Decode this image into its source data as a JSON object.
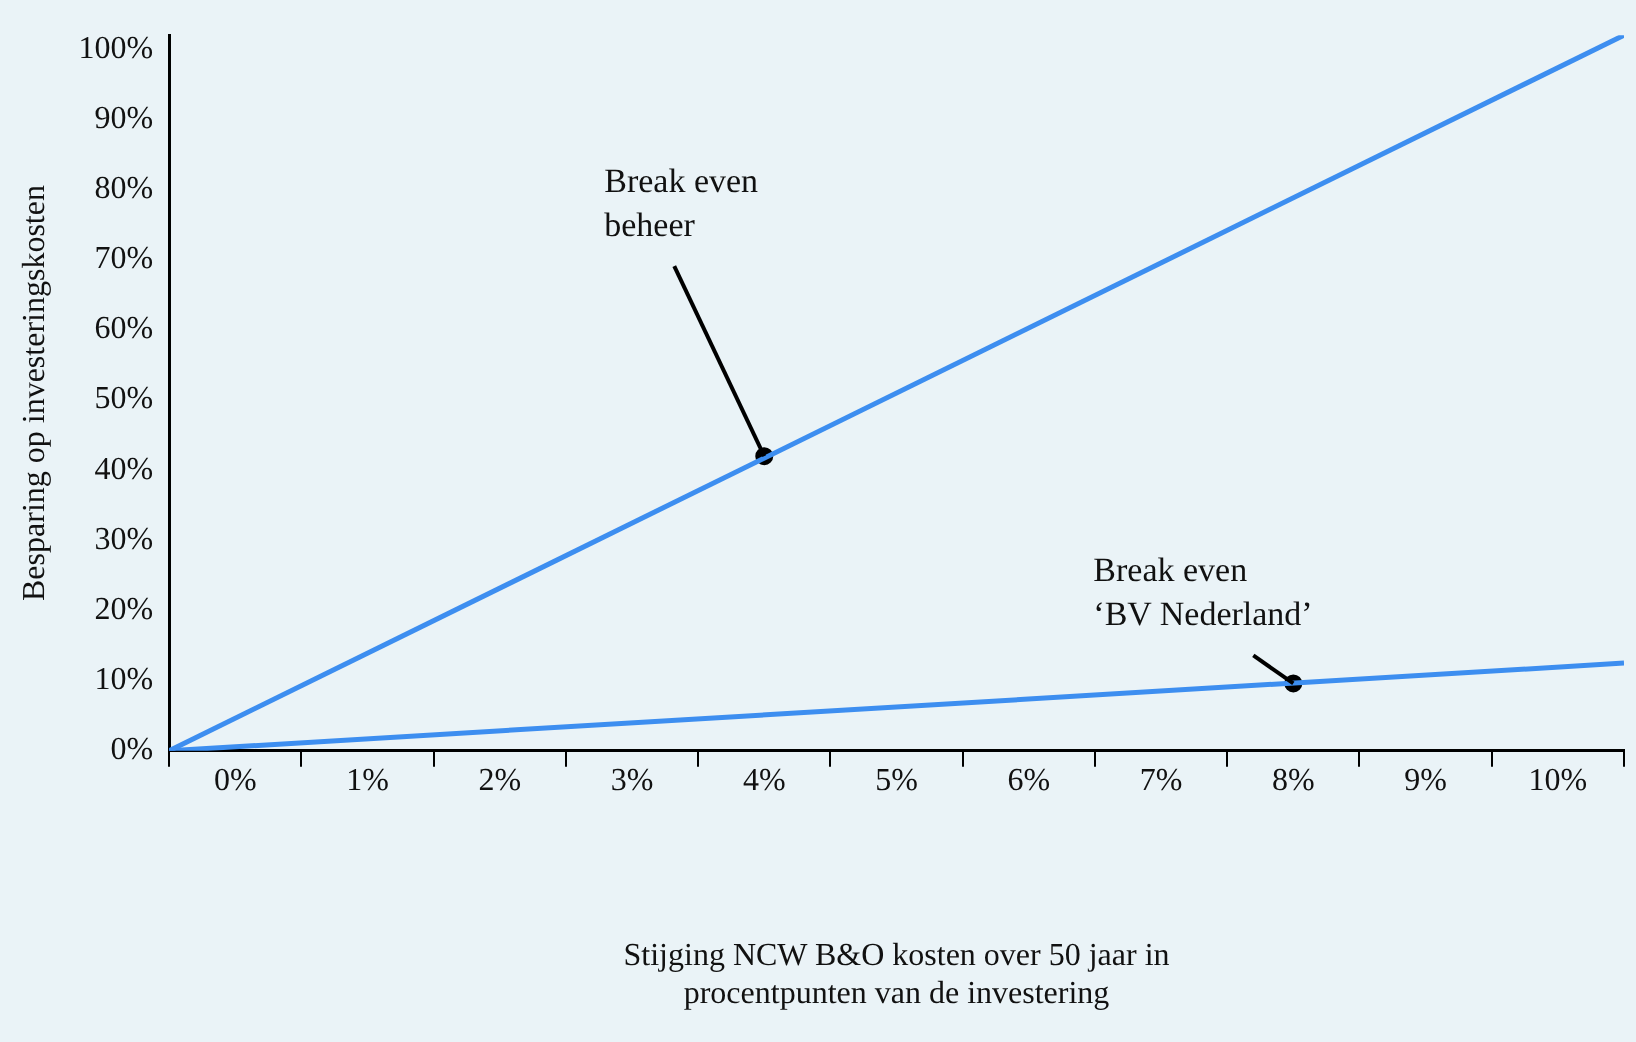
{
  "chart_data": {
    "type": "line",
    "xlabel": "Stijging NCW B&O kosten over 50 jaar in\nprocentpunten van de investering",
    "ylabel": "Besparing op investeringskosten",
    "xlim": [
      -0.5,
      10.5
    ],
    "xticks": [
      {
        "value": -0.5,
        "label": null
      },
      {
        "value": 0,
        "label": "0%"
      },
      {
        "value": 0.5,
        "label": null
      },
      {
        "value": 1,
        "label": "1%"
      },
      {
        "value": 1.5,
        "label": null
      },
      {
        "value": 2,
        "label": "2%"
      },
      {
        "value": 2.5,
        "label": null
      },
      {
        "value": 3,
        "label": "3%"
      },
      {
        "value": 3.5,
        "label": null
      },
      {
        "value": 4,
        "label": "4%"
      },
      {
        "value": 4.5,
        "label": null
      },
      {
        "value": 5,
        "label": "5%"
      },
      {
        "value": 5.5,
        "label": null
      },
      {
        "value": 6,
        "label": "6%"
      },
      {
        "value": 6.5,
        "label": null
      },
      {
        "value": 7,
        "label": "7%"
      },
      {
        "value": 7.5,
        "label": null
      },
      {
        "value": 8,
        "label": "8%"
      },
      {
        "value": 8.5,
        "label": null
      },
      {
        "value": 9,
        "label": "9%"
      },
      {
        "value": 9.5,
        "label": null
      },
      {
        "value": 10,
        "label": "10%"
      },
      {
        "value": 10.5,
        "label": null
      }
    ],
    "ylim": [
      0,
      102
    ],
    "yticks": [
      {
        "value": 0,
        "label": "0%"
      },
      {
        "value": 10,
        "label": "10%"
      },
      {
        "value": 20,
        "label": "20%"
      },
      {
        "value": 30,
        "label": "30%"
      },
      {
        "value": 40,
        "label": "40%"
      },
      {
        "value": 50,
        "label": "50%"
      },
      {
        "value": 60,
        "label": "60%"
      },
      {
        "value": 70,
        "label": "70%"
      },
      {
        "value": 80,
        "label": "80%"
      },
      {
        "value": 90,
        "label": "90%"
      },
      {
        "value": 100,
        "label": "100%"
      }
    ],
    "series": [
      {
        "color": "#3d8ef0",
        "x": [
          -0.5,
          10.5
        ],
        "values": [
          0,
          102
        ]
      },
      {
        "color": "#3d8ef0",
        "x": [
          -0.5,
          10.5
        ],
        "values": [
          0,
          12.5
        ]
      },
      {
        "type": "scatter",
        "color": "#000000",
        "marker": "circle",
        "x": [
          4,
          8
        ],
        "values": [
          42,
          9.6
        ]
      }
    ],
    "annotations": [
      {
        "text": "Break even\nbeheer",
        "x": 4,
        "y": 42
      },
      {
        "text": "Break even\n‘BV Nederland’",
        "x": 8,
        "y": 9.6
      }
    ],
    "grid": false,
    "legend": false,
    "line_style": "solid"
  }
}
